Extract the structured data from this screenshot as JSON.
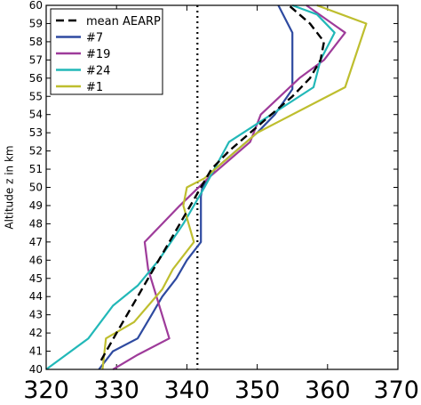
{
  "chart_data": {
    "type": "line",
    "title": "",
    "xlabel": "",
    "ylabel": "Altitude z in km",
    "xlim": [
      320,
      370
    ],
    "ylim": [
      40,
      60
    ],
    "xticks": [
      320,
      330,
      340,
      350,
      360,
      370
    ],
    "yticks": [
      40,
      41,
      42,
      43,
      44,
      45,
      46,
      47,
      48,
      49,
      50,
      51,
      52,
      53,
      54,
      55,
      56,
      57,
      58,
      59,
      60
    ],
    "grid": false,
    "legend_position": "top-left",
    "reference_line": {
      "x": 341.5,
      "style": "dotted",
      "color": "#000000"
    },
    "series": [
      {
        "name": "mean AEARP",
        "color": "#000000",
        "dashed": true,
        "points": [
          [
            327.8,
            40.5
          ],
          [
            330,
            42
          ],
          [
            331.5,
            43
          ],
          [
            333,
            44
          ],
          [
            334.5,
            45
          ],
          [
            336,
            46
          ],
          [
            337.5,
            47
          ],
          [
            339,
            48
          ],
          [
            340.5,
            49
          ],
          [
            342,
            50
          ],
          [
            343.5,
            51
          ],
          [
            346,
            52
          ],
          [
            349,
            53
          ],
          [
            352,
            54
          ],
          [
            355,
            55
          ],
          [
            357.5,
            56
          ],
          [
            359,
            57
          ],
          [
            359.5,
            58
          ],
          [
            357.5,
            59
          ],
          [
            354.5,
            60
          ]
        ]
      },
      {
        "name": "#7",
        "color": "#2e4aa0",
        "dashed": false,
        "points": [
          [
            327.5,
            40
          ],
          [
            329.5,
            41
          ],
          [
            333,
            41.7
          ],
          [
            335,
            43
          ],
          [
            336.5,
            44
          ],
          [
            338.5,
            45
          ],
          [
            340,
            46
          ],
          [
            342,
            47
          ],
          [
            342,
            49.5
          ],
          [
            342.2,
            50
          ],
          [
            344,
            51
          ],
          [
            347,
            52
          ],
          [
            350,
            53
          ],
          [
            352.5,
            54
          ],
          [
            355,
            55.4
          ],
          [
            355,
            58.5
          ],
          [
            353,
            60
          ]
        ]
      },
      {
        "name": "#19",
        "color": "#9e3b9a",
        "dashed": false,
        "points": [
          [
            329.5,
            40
          ],
          [
            333,
            40.8
          ],
          [
            337.5,
            41.7
          ],
          [
            334.5,
            45.5
          ],
          [
            334,
            47
          ],
          [
            339,
            49
          ],
          [
            343,
            50.5
          ],
          [
            349,
            52.5
          ],
          [
            350.5,
            54
          ],
          [
            356,
            56
          ],
          [
            359.5,
            57
          ],
          [
            362.5,
            58.5
          ],
          [
            357,
            60
          ]
        ]
      },
      {
        "name": "#24",
        "color": "#22b8b8",
        "dashed": false,
        "points": [
          [
            320,
            40
          ],
          [
            326,
            41.7
          ],
          [
            329.5,
            43.5
          ],
          [
            333,
            44.6
          ],
          [
            336,
            46
          ],
          [
            339.5,
            48
          ],
          [
            342.5,
            50
          ],
          [
            346,
            52.5
          ],
          [
            350,
            53.5
          ],
          [
            354,
            54.5
          ],
          [
            358,
            55.5
          ],
          [
            359,
            57
          ],
          [
            361,
            58.5
          ],
          [
            358.5,
            59.5
          ],
          [
            355,
            60
          ]
        ]
      },
      {
        "name": "#1",
        "color": "#bebe2e",
        "dashed": false,
        "points": [
          [
            328,
            40
          ],
          [
            328.5,
            41.7
          ],
          [
            332.5,
            42.6
          ],
          [
            336.5,
            44.4
          ],
          [
            338,
            45.5
          ],
          [
            341,
            47
          ],
          [
            339.5,
            49
          ],
          [
            340,
            50
          ],
          [
            342.5,
            50.5
          ],
          [
            345.5,
            51.5
          ],
          [
            350,
            53
          ],
          [
            353.5,
            53.7
          ],
          [
            362.5,
            55.5
          ],
          [
            365.5,
            59
          ],
          [
            358.5,
            60
          ]
        ]
      }
    ]
  }
}
